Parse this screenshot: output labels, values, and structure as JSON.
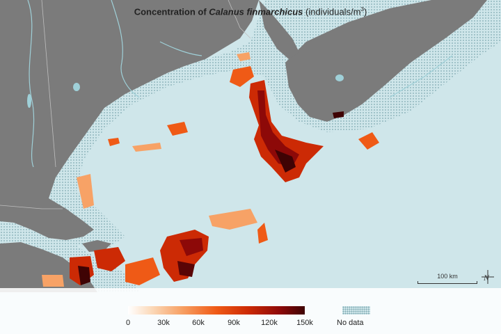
{
  "legend": {
    "title_prefix": "Concentration of ",
    "title_species": "Calanus finmarchicus",
    "title_units": "(individuals/m",
    "title_units_sup": "3",
    "title_units_close": ")",
    "ticks": [
      "0",
      "30k",
      "60k",
      "90k",
      "120k",
      "150k"
    ],
    "nodata_label": "No data",
    "colors": {
      "low": "#ffffff",
      "mid": "#ef5a16",
      "high": "#3f0304",
      "nodata_dots": "#7fa9b1",
      "ocean": "#cfe6ea",
      "land": "#7b7b7b"
    }
  },
  "scale_bar": {
    "label": "100 km"
  },
  "north_arrow": {
    "letter": "N",
    "icon": "north-arrow-icon"
  }
}
